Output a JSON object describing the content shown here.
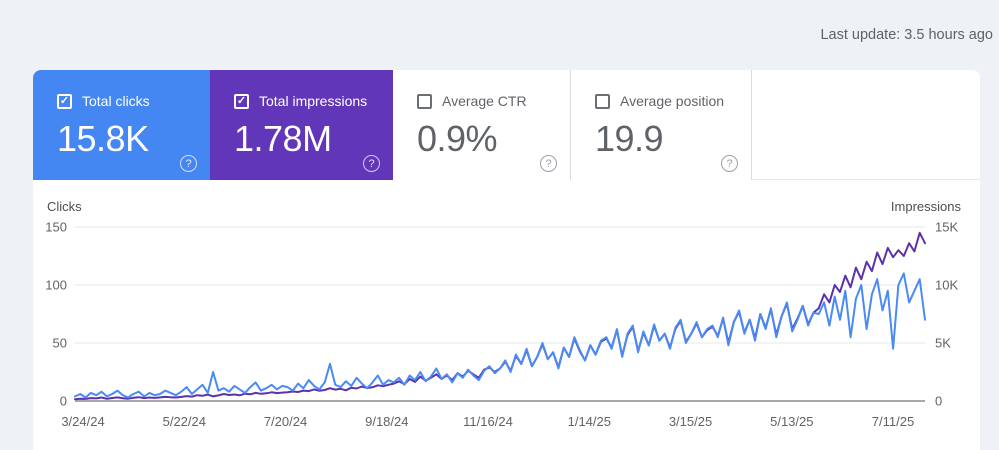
{
  "icons": {
    "check": "✓",
    "help": "?"
  },
  "header": {
    "last_update": "Last update: 3.5 hours ago"
  },
  "metrics": [
    {
      "label": "Total clicks",
      "value": "15.8K",
      "checked": true,
      "bg": "#4587f2"
    },
    {
      "label": "Total impressions",
      "value": "1.78M",
      "checked": true,
      "bg": "#6236b8"
    },
    {
      "label": "Average CTR",
      "value": "0.9%",
      "checked": false,
      "bg": ""
    },
    {
      "label": "Average position",
      "value": "19.9",
      "checked": false,
      "bg": ""
    }
  ],
  "chart_data": {
    "type": "line",
    "title": "",
    "grid": true,
    "legend_position": "none",
    "x_labels": [
      "3/24/24",
      "5/22/24",
      "7/20/24",
      "9/18/24",
      "11/16/24",
      "1/14/25",
      "3/15/25",
      "5/13/25",
      "7/11/25"
    ],
    "left_axis": {
      "title": "Clicks",
      "max": 150,
      "ticks": [
        0,
        50,
        100,
        150
      ],
      "tick_labels": [
        "0",
        "50",
        "100",
        "150"
      ]
    },
    "right_axis": {
      "title": "Impressions",
      "max": 15000,
      "ticks": [
        0,
        5000,
        10000,
        15000
      ],
      "tick_labels": [
        "0",
        "5K",
        "10K",
        "15K"
      ]
    },
    "series": [
      {
        "name": "Total clicks",
        "axis": "left",
        "color": "#4a8af4",
        "values": [
          4,
          6,
          3,
          7,
          5,
          8,
          4,
          6,
          9,
          5,
          3,
          6,
          8,
          4,
          7,
          5,
          6,
          9,
          7,
          5,
          8,
          12,
          6,
          10,
          14,
          7,
          25,
          9,
          11,
          8,
          13,
          10,
          7,
          12,
          16,
          9,
          11,
          14,
          10,
          13,
          12,
          9,
          15,
          11,
          18,
          13,
          10,
          16,
          32,
          14,
          12,
          17,
          13,
          20,
          15,
          11,
          16,
          22,
          14,
          18,
          16,
          20,
          14,
          22,
          18,
          25,
          17,
          21,
          28,
          19,
          23,
          16,
          24,
          20,
          27,
          22,
          18,
          26,
          30,
          24,
          28,
          35,
          25,
          40,
          32,
          45,
          30,
          38,
          50,
          36,
          42,
          28,
          46,
          38,
          55,
          44,
          35,
          48,
          40,
          52,
          55,
          45,
          62,
          38,
          58,
          65,
          42,
          60,
          48,
          66,
          52,
          58,
          45,
          63,
          70,
          50,
          58,
          68,
          55,
          62,
          65,
          55,
          72,
          48,
          68,
          78,
          58,
          70,
          52,
          75,
          62,
          80,
          55,
          73,
          85,
          60,
          70,
          82,
          65,
          76,
          75,
          85,
          65,
          90,
          70,
          95,
          55,
          88,
          100,
          62,
          92,
          105,
          78,
          95,
          45,
          100,
          110,
          85,
          95,
          105,
          70
        ]
      },
      {
        "name": "Total impressions",
        "axis": "right",
        "color": "#5b32ab",
        "values": [
          150,
          200,
          180,
          250,
          220,
          300,
          190,
          260,
          310,
          240,
          200,
          280,
          330,
          250,
          300,
          270,
          310,
          350,
          320,
          300,
          350,
          420,
          380,
          500,
          450,
          550,
          400,
          480,
          600,
          520,
          560,
          490,
          630,
          580,
          700,
          620,
          660,
          750,
          680,
          720,
          750,
          820,
          780,
          900,
          850,
          1000,
          880,
          950,
          1100,
          980,
          1050,
          920,
          1150,
          1080,
          1250,
          1120,
          1180,
          1350,
          1280,
          1400,
          1500,
          1700,
          1450,
          1900,
          1650,
          2100,
          1750,
          2000,
          2300,
          1900,
          2200,
          1800,
          2400,
          2100,
          2600,
          2300,
          2000,
          2700,
          2900,
          2500,
          2800,
          3400,
          2600,
          3900,
          3200,
          4400,
          3000,
          3800,
          4900,
          3600,
          4200,
          2900,
          4600,
          3800,
          5400,
          4300,
          3500,
          4800,
          4000,
          5100,
          5400,
          4600,
          6100,
          3900,
          5700,
          6400,
          4300,
          5900,
          4800,
          6500,
          5200,
          5800,
          4600,
          6200,
          6900,
          5100,
          5800,
          6700,
          5500,
          6100,
          6400,
          5600,
          7100,
          5000,
          6800,
          7700,
          5900,
          7000,
          5400,
          7500,
          6300,
          7900,
          5700,
          7300,
          8400,
          6200,
          7100,
          8200,
          6600,
          7600,
          8000,
          9200,
          8500,
          10000,
          9400,
          10800,
          9800,
          11500,
          10500,
          12000,
          11200,
          12800,
          11800,
          13200,
          12400,
          13000,
          12500,
          13600,
          12900,
          14500,
          13600
        ]
      }
    ]
  }
}
